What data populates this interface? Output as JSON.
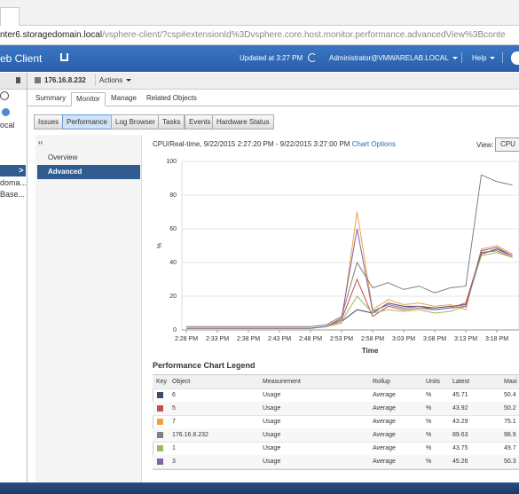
{
  "browser": {
    "url_host": "nter6.storagedomain.local",
    "url_path": "/vsphere-client/?csp#extensionId%3Dvsphere.core.host.monitor.performance.advancedView%3Bconte"
  },
  "header": {
    "app_title": "eb Client",
    "updated": "Updated at 3:27 PM",
    "user": "Administrator@VMWARELAB.LOCAL",
    "help": "Help"
  },
  "navigator": {
    "items": [
      "ocal",
      "doma...",
      "Base..."
    ]
  },
  "object": {
    "name": "176.16.8.232",
    "actions": "Actions"
  },
  "tabs": [
    "Summary",
    "Monitor",
    "Manage",
    "Related Objects"
  ],
  "subtabs": [
    "Issues",
    "Performance",
    "Log Browser",
    "Tasks",
    "Events",
    "Hardware Status"
  ],
  "sidenav": [
    "Overview",
    "Advanced"
  ],
  "chart_header": {
    "title": "CPU/Real-time, 9/22/2015 2:27:20 PM - 9/22/2015 3:27:00 PM",
    "link": "Chart Options",
    "view_label": "View:",
    "view_value": "CPU"
  },
  "chart_data": {
    "type": "line",
    "x_label": "Time",
    "y_label": "%",
    "categories": [
      "2:28 PM",
      null,
      "2:33 PM",
      null,
      "2:38 PM",
      null,
      "2:43 PM",
      null,
      "2:48 PM",
      null,
      "2:53 PM",
      null,
      "2:58 PM",
      null,
      "3:03 PM",
      null,
      "3:08 PM",
      null,
      "3:13 PM",
      null,
      "3:18 PM",
      null
    ],
    "ylim": [
      0,
      100
    ],
    "yticks": [
      0,
      20,
      40,
      60,
      80,
      100
    ],
    "grid": true,
    "series": [
      {
        "name": "6",
        "color": "#3c4a6b",
        "values": [
          1,
          1,
          1,
          1,
          1,
          1,
          1,
          1,
          1,
          2,
          5,
          12,
          10,
          16,
          14,
          14,
          13,
          14,
          15,
          45,
          48,
          44
        ]
      },
      {
        "name": "5",
        "color": "#c0504d",
        "values": [
          1,
          1,
          1,
          1,
          1,
          1,
          1,
          1,
          1,
          2,
          6,
          30,
          8,
          14,
          12,
          13,
          12,
          13,
          16,
          46,
          47,
          43
        ]
      },
      {
        "name": "7",
        "color": "#f0a040",
        "values": [
          1,
          1,
          1,
          1,
          1,
          1,
          1,
          1,
          1,
          2,
          4,
          70,
          12,
          18,
          15,
          16,
          14,
          15,
          12,
          48,
          50,
          45
        ]
      },
      {
        "name": "176.16.8.232",
        "color": "#7f7f7f",
        "values": [
          2,
          2,
          2,
          2,
          2,
          2,
          2,
          2,
          2,
          3,
          8,
          40,
          25,
          28,
          24,
          26,
          22,
          25,
          26,
          92,
          88,
          86
        ]
      },
      {
        "name": "1",
        "color": "#9bbb59",
        "values": [
          1,
          1,
          1,
          1,
          1,
          1,
          1,
          1,
          1,
          2,
          5,
          20,
          10,
          12,
          11,
          12,
          10,
          11,
          14,
          44,
          46,
          43
        ]
      },
      {
        "name": "3",
        "color": "#8064a2",
        "values": [
          1,
          1,
          1,
          1,
          1,
          1,
          1,
          1,
          1,
          2,
          7,
          60,
          11,
          15,
          13,
          14,
          12,
          13,
          14,
          47,
          49,
          44
        ]
      }
    ]
  },
  "legend_table": {
    "title": "Performance Chart Legend",
    "columns": [
      "Key",
      "Object",
      "Measurement",
      "Rollup",
      "Units",
      "Latest",
      "Maxi"
    ],
    "rows": [
      [
        "6",
        "Usage",
        "Average",
        "%",
        "45.71",
        "50.4"
      ],
      [
        "5",
        "Usage",
        "Average",
        "%",
        "43.92",
        "50.2"
      ],
      [
        "7",
        "Usage",
        "Average",
        "%",
        "43.29",
        "75.1"
      ],
      [
        "176.16.8.232",
        "Usage",
        "Average",
        "%",
        "89.63",
        "98.9"
      ],
      [
        "1",
        "Usage",
        "Average",
        "%",
        "43.75",
        "49.7"
      ],
      [
        "3",
        "Usage",
        "Average",
        "%",
        "45.26",
        "50.3"
      ]
    ]
  }
}
